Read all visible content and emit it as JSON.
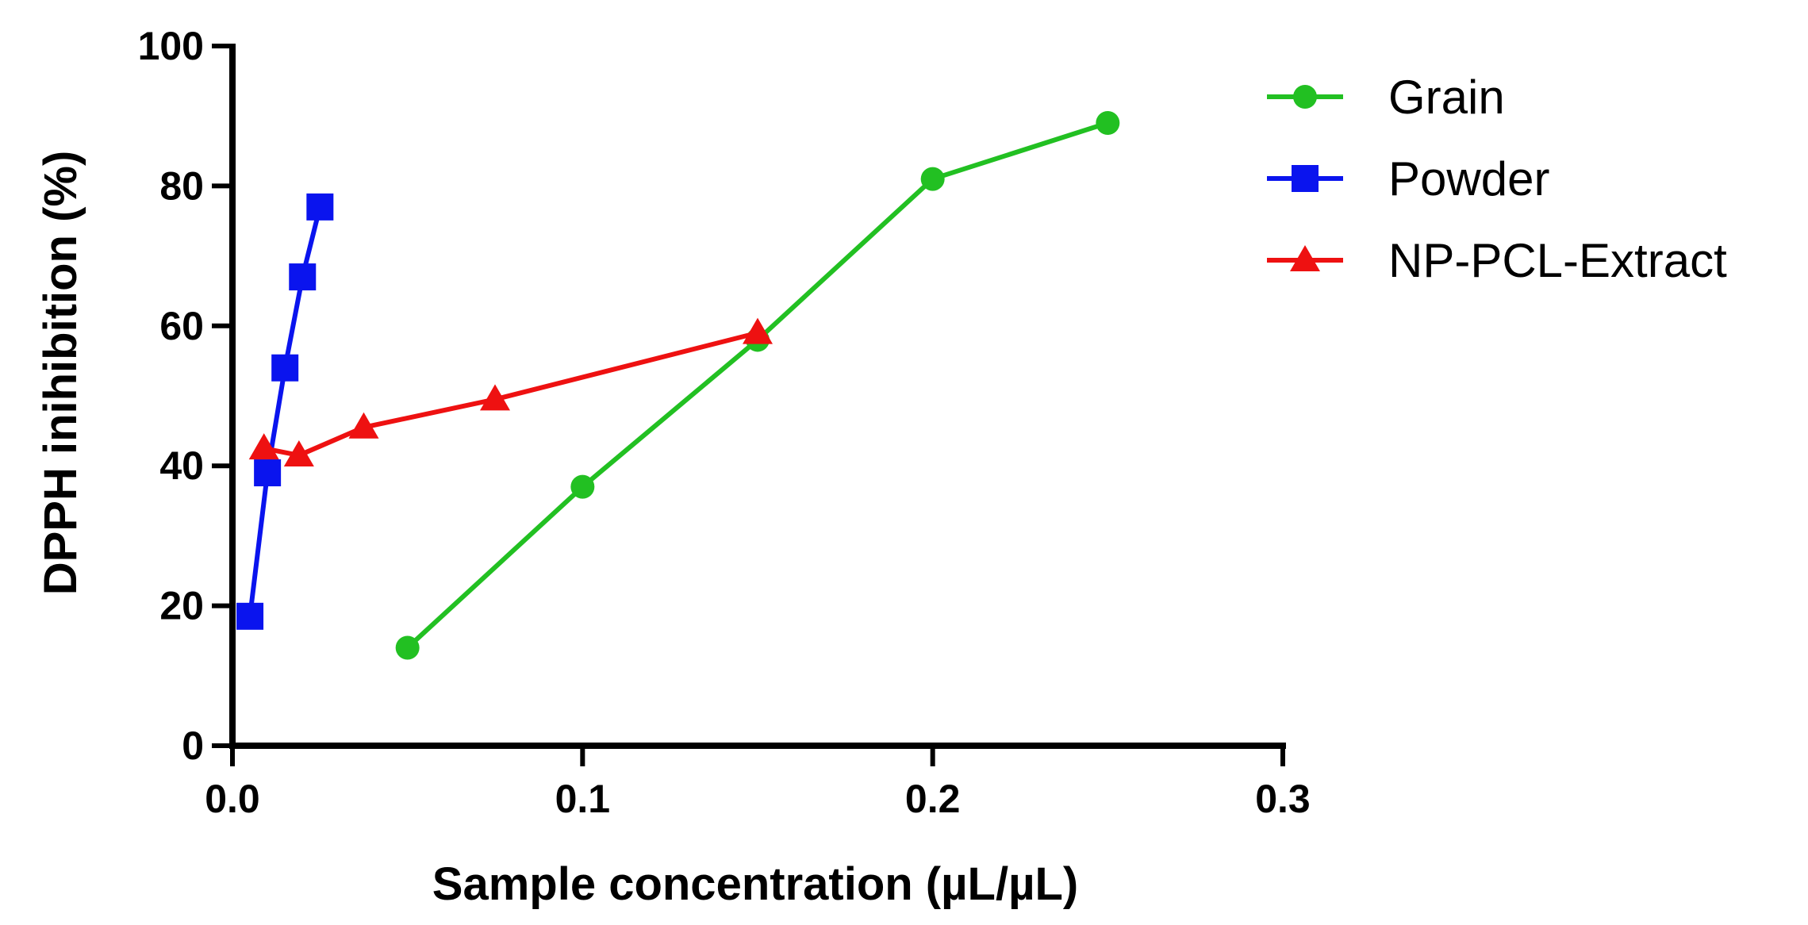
{
  "chart_data": {
    "type": "line",
    "xlabel": "Sample concentration (µL/µL)",
    "ylabel": "DPPH inihibition (%)",
    "xlim": [
      0.0,
      0.3
    ],
    "ylim": [
      0,
      100
    ],
    "xticks": [
      0.0,
      0.1,
      0.2,
      0.3
    ],
    "xtick_labels": [
      "0.0",
      "0.1",
      "0.2",
      "0.3"
    ],
    "yticks": [
      0,
      20,
      40,
      60,
      80,
      100
    ],
    "ytick_labels": [
      "0",
      "20",
      "40",
      "60",
      "80",
      "100"
    ],
    "legend_position": "top-right, outside plot",
    "series": [
      {
        "name": "Grain",
        "color": "#22c022",
        "marker": "circle",
        "x": [
          0.05,
          0.1,
          0.15,
          0.2,
          0.25
        ],
        "y": [
          14,
          37,
          58,
          81,
          89
        ]
      },
      {
        "name": "Powder",
        "color": "#0a14ee",
        "marker": "square",
        "x": [
          0.005,
          0.01,
          0.015,
          0.02,
          0.025
        ],
        "y": [
          18.5,
          39,
          54,
          67,
          77
        ]
      },
      {
        "name": "NP-PCL-Extract",
        "color": "#ee1111",
        "marker": "triangle",
        "x": [
          0.009,
          0.019,
          0.0375,
          0.075,
          0.15
        ],
        "y": [
          42.5,
          41.5,
          45.5,
          49.5,
          59
        ]
      }
    ]
  }
}
